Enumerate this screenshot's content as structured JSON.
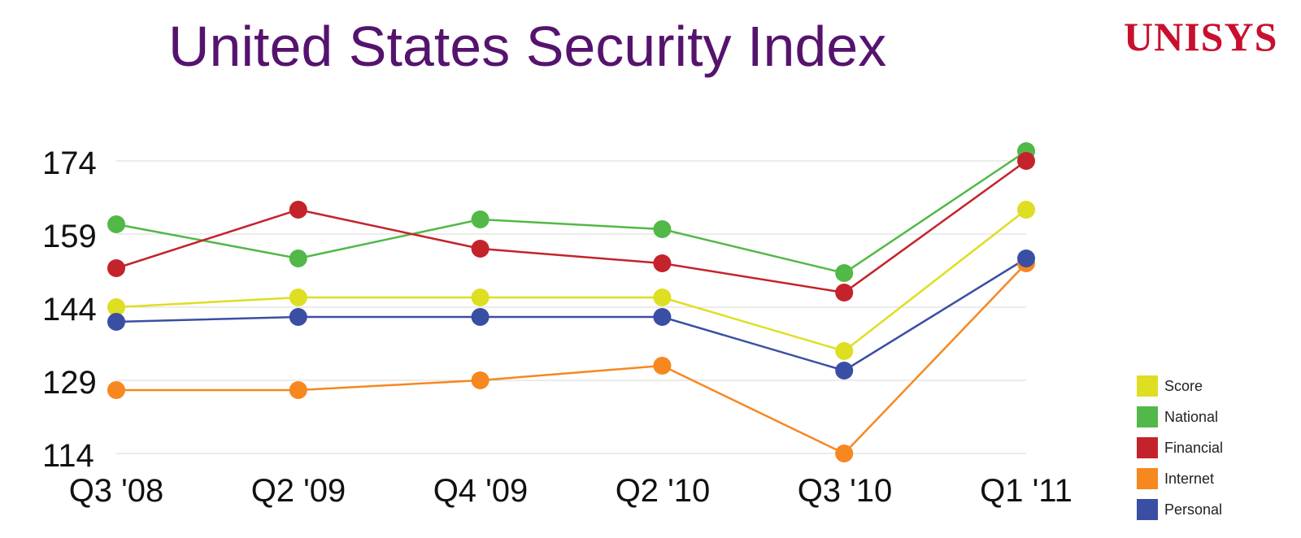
{
  "logo": "UNISYS",
  "chart_data": {
    "type": "line",
    "title": "United States Security Index",
    "xlabel": "",
    "ylabel": "",
    "categories": [
      "Q3 '08",
      "Q2 '09",
      "Q4 '09",
      "Q2 '10",
      "Q3 '10",
      "Q1 '11"
    ],
    "yticks": [
      174,
      159,
      144,
      129,
      114
    ],
    "ylim": [
      114,
      174
    ],
    "grid": true,
    "legend_position": "right",
    "series": [
      {
        "name": "Score",
        "color": "#dede22",
        "values": [
          144,
          146,
          146,
          146,
          135,
          164
        ]
      },
      {
        "name": "National",
        "color": "#52b848",
        "values": [
          161,
          154,
          162,
          160,
          151,
          176
        ]
      },
      {
        "name": "Financial",
        "color": "#c4232b",
        "values": [
          152,
          164,
          156,
          153,
          147,
          174
        ]
      },
      {
        "name": "Internet",
        "color": "#f7871f",
        "values": [
          127,
          127,
          129,
          132,
          114,
          153
        ]
      },
      {
        "name": "Personal",
        "color": "#3a4fa3",
        "values": [
          141,
          142,
          142,
          142,
          131,
          154
        ]
      }
    ]
  }
}
